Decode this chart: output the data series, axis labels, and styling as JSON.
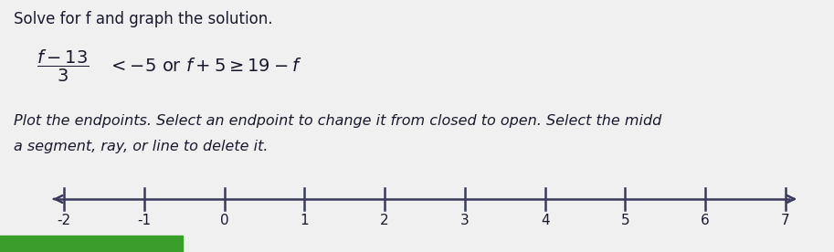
{
  "title_line1": "Solve for f and graph the solution.",
  "instruction_line1": "Plot the endpoints. Select an endpoint to change it from closed to open. Select the midd",
  "instruction_line2": "a segment, ray, or line to delete it.",
  "tick_positions": [
    -2,
    -1,
    0,
    1,
    2,
    3,
    4,
    5,
    6,
    7
  ],
  "tick_labels": [
    "-2",
    "-1",
    "0",
    "1",
    "2",
    "3",
    "4",
    "5",
    "6",
    "7"
  ],
  "bg_color": "#f0f0f0",
  "text_color": "#1a1a2e",
  "line_color": "#3a3a5c",
  "green_bar_color": "#3a9e2b",
  "figsize": [
    9.13,
    2.76
  ],
  "dpi": 100,
  "title_fontsize": 12,
  "eq_fontsize": 14,
  "instr_fontsize": 11.5,
  "tick_fontsize": 11
}
